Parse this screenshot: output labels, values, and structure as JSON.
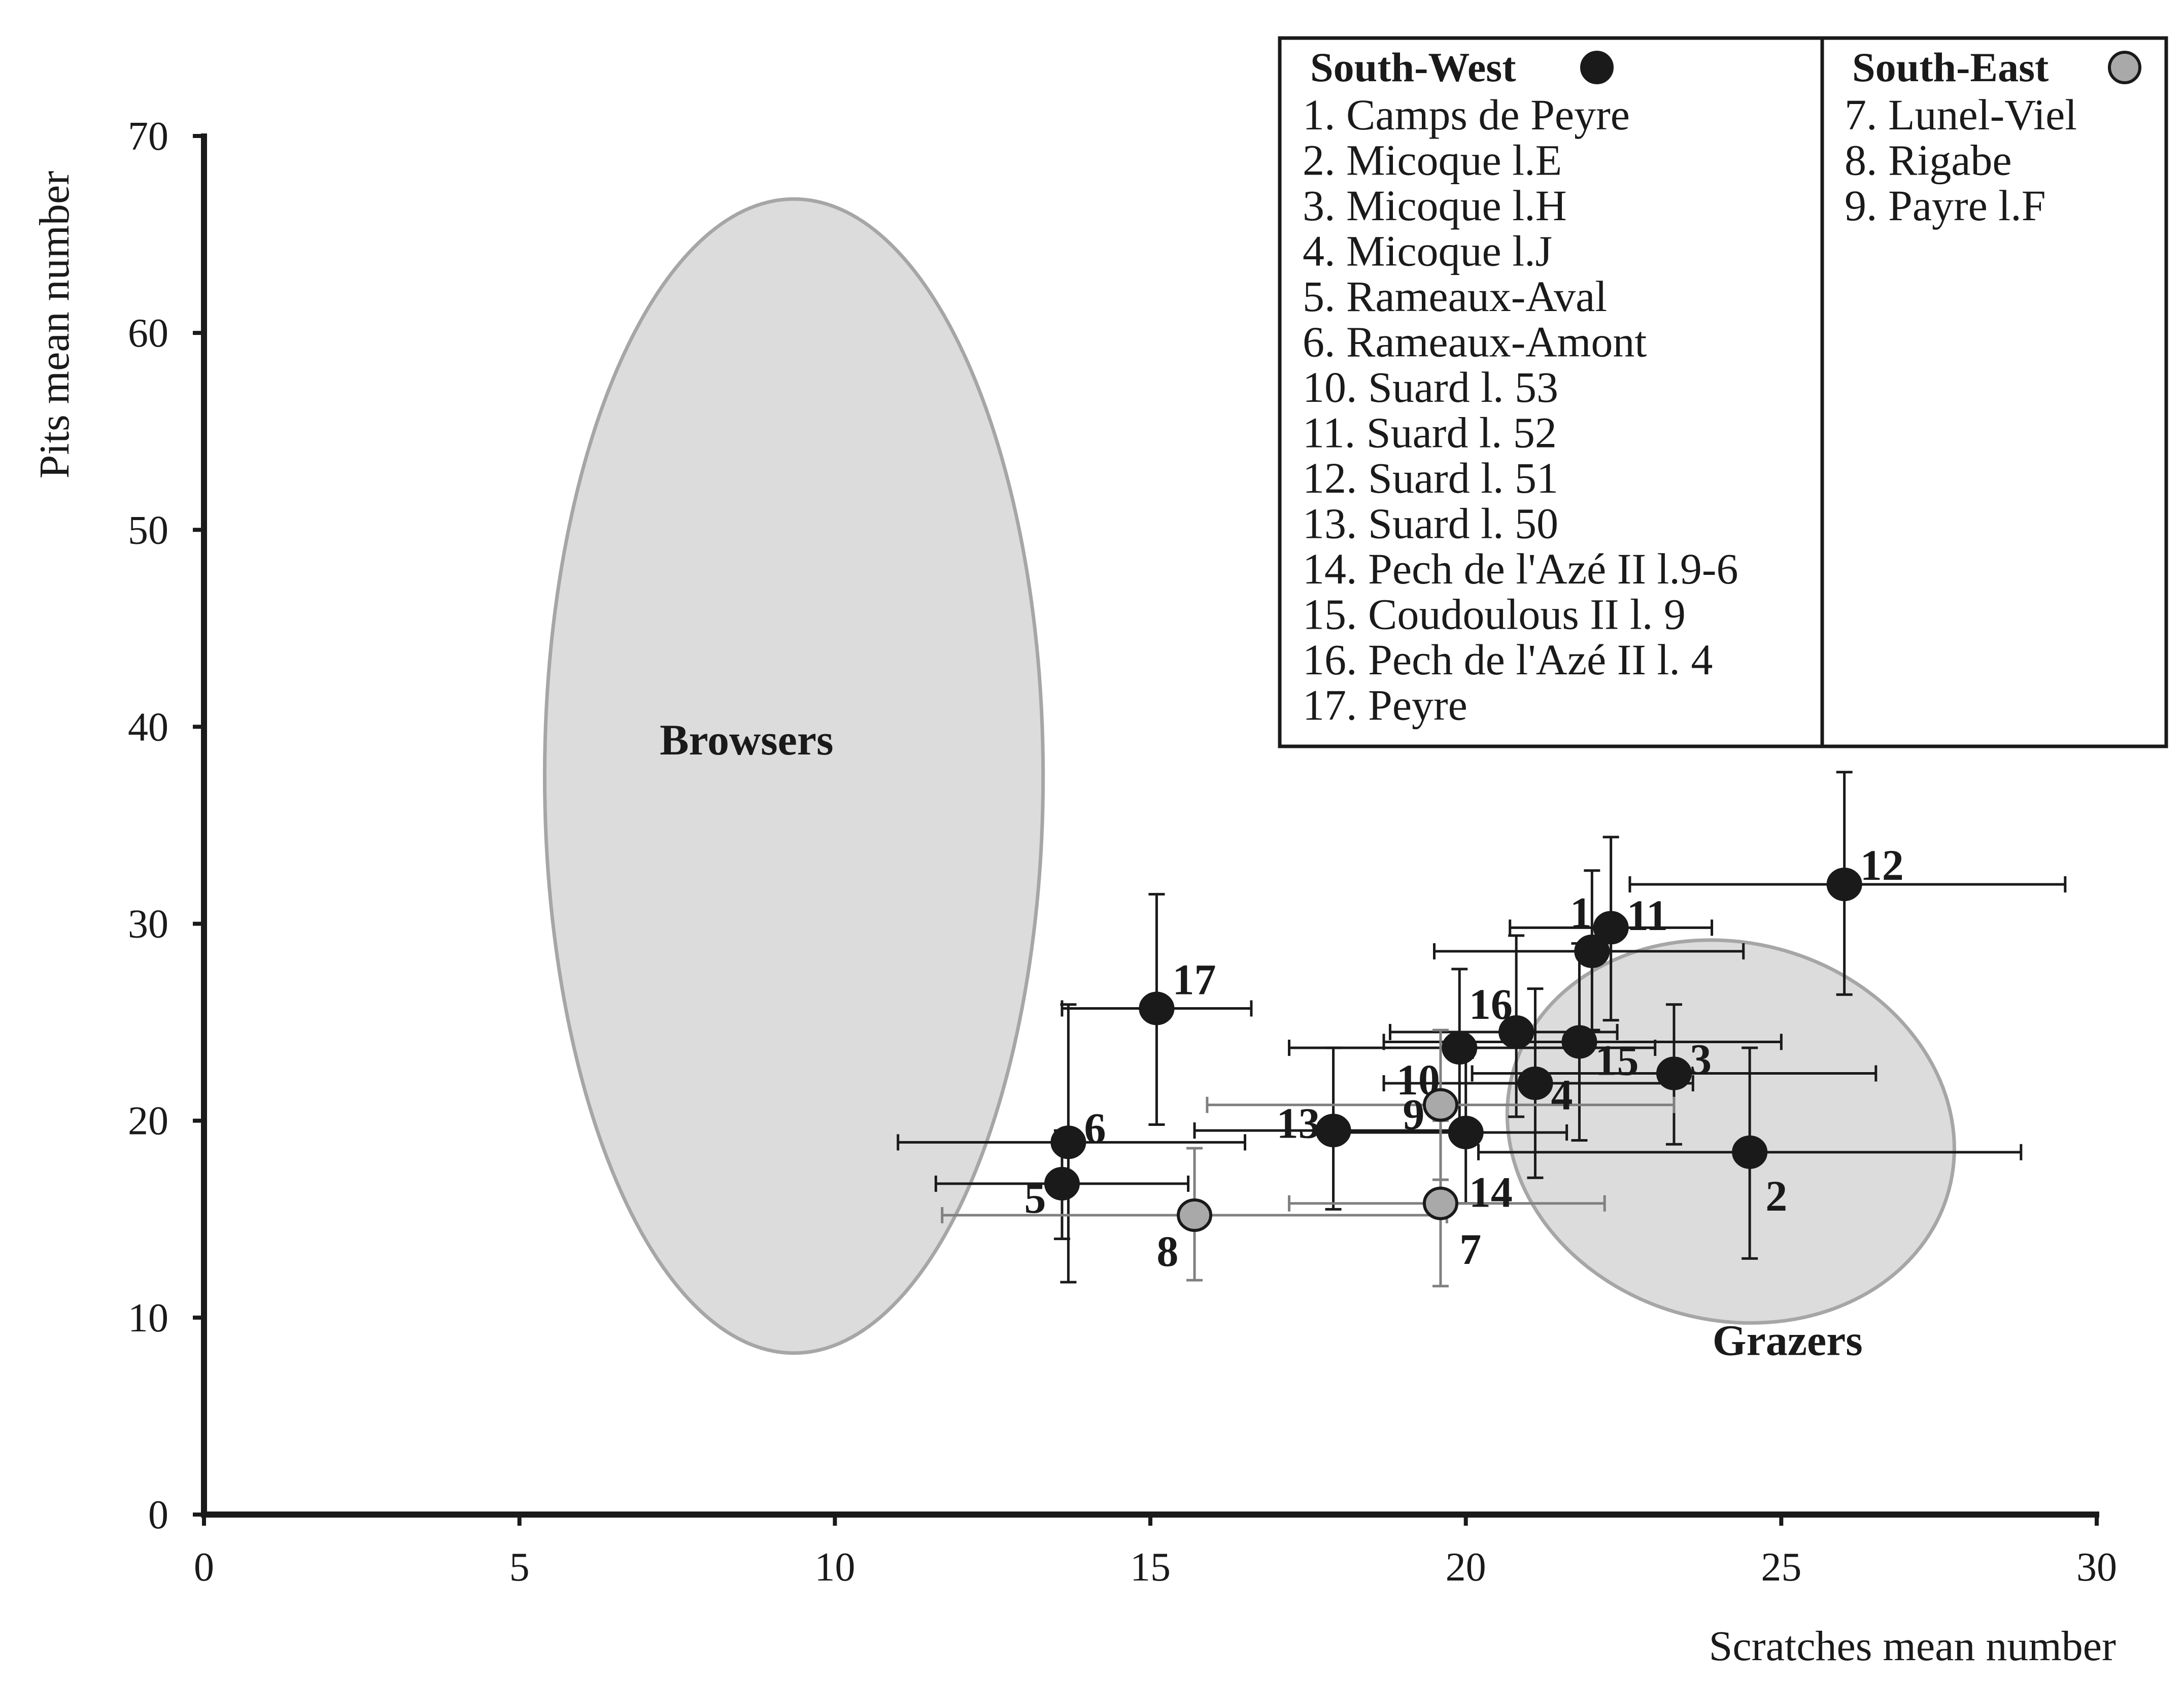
{
  "chart_data": {
    "type": "scatter",
    "xlabel": "Scratches mean number",
    "ylabel": "Pits mean number",
    "xlim": [
      0,
      30
    ],
    "ylim": [
      0,
      70
    ],
    "x_ticks": [
      "0",
      "5",
      "10",
      "15",
      "20",
      "25",
      "30"
    ],
    "y_ticks": [
      "0",
      "10",
      "20",
      "30",
      "40",
      "50",
      "60",
      "70"
    ],
    "x_tick_values": [
      0,
      5,
      10,
      15,
      20,
      25,
      30
    ],
    "y_tick_values": [
      0,
      10,
      20,
      30,
      40,
      50,
      60,
      70
    ],
    "grid": false,
    "legend_position": "top-right",
    "colors": {
      "south_west": "#1a1a1a",
      "south_east": "#a9a9a9",
      "zone_fill": "#dcdcdc",
      "zone_stroke": "#a6a6a6",
      "error_bar_sw": "#1a1a1a",
      "error_bar_se": "#808080"
    },
    "zones": [
      {
        "label": "Browsers",
        "center": [
          9.35,
          37.5
        ],
        "semi_axes": [
          3.95,
          29.3
        ],
        "rotation_deg": 0,
        "label_at": [
          8.6,
          38.6
        ]
      },
      {
        "label": "Grazers",
        "center": [
          24.2,
          19.45
        ],
        "semi_axes": [
          5.25,
          10.8
        ],
        "rotation_deg": -75,
        "label_at": [
          25.1,
          8.1
        ]
      }
    ],
    "legend": {
      "groups": [
        {
          "title": "South-West",
          "marker": "south_west",
          "entries": [
            "1. Camps de Peyre",
            "2. Micoque l.E",
            "3. Micoque l.H",
            "4. Micoque l.J",
            "5. Rameaux-Aval",
            "6. Rameaux-Amont",
            "10. Suard l. 53",
            "11. Suard l. 52",
            "12. Suard l. 51",
            "13. Suard l. 50",
            "14. Pech de l'Azé II l.9-6",
            "15. Coudoulous II l. 9",
            "16. Pech de l'Azé II l. 4",
            "17. Peyre"
          ]
        },
        {
          "title": "South-East",
          "marker": "south_east",
          "entries": [
            "7. Lunel-Viel",
            "8. Rigabe",
            "9. Payre l.F"
          ]
        }
      ]
    },
    "series": [
      {
        "name": "South-West",
        "group": "south_west",
        "points": [
          {
            "label": "1",
            "x": 22.0,
            "y": 28.6,
            "x_err": [
              19.5,
              24.4
            ],
            "y_err": [
              24.6,
              32.7
            ],
            "label_offset": [
              -0.35,
              2.0
            ]
          },
          {
            "label": "2",
            "x": 24.5,
            "y": 18.4,
            "x_err": [
              20.2,
              28.8
            ],
            "y_err": [
              13.0,
              23.7
            ],
            "label_offset": [
              0.25,
              -2.2
            ]
          },
          {
            "label": "3",
            "x": 23.3,
            "y": 22.4,
            "x_err": [
              20.1,
              26.5
            ],
            "y_err": [
              18.8,
              25.9
            ],
            "label_offset": [
              0.25,
              0.75
            ]
          },
          {
            "label": "4",
            "x": 21.1,
            "y": 21.9,
            "x_err": [
              18.7,
              23.6
            ],
            "y_err": [
              17.1,
              26.7
            ],
            "label_offset": [
              0.25,
              -0.55
            ]
          },
          {
            "label": "5",
            "x": 13.6,
            "y": 16.8,
            "x_err": [
              11.6,
              15.6
            ],
            "y_err": [
              14.0,
              19.5
            ],
            "label_offset": [
              -0.6,
              -0.7
            ]
          },
          {
            "label": "6",
            "x": 13.7,
            "y": 18.9,
            "x_err": [
              11.0,
              16.5
            ],
            "y_err": [
              11.8,
              25.9
            ],
            "label_offset": [
              0.25,
              0.75
            ]
          },
          {
            "label": "10",
            "x": 19.9,
            "y": 23.7,
            "x_err": [
              17.2,
              23.0
            ],
            "y_err": [
              19.6,
              27.7
            ],
            "label_offset": [
              -1.0,
              -1.6
            ]
          },
          {
            "label": "11",
            "x": 22.3,
            "y": 29.8,
            "x_err": [
              20.7,
              23.9
            ],
            "y_err": [
              25.1,
              34.4
            ],
            "label_offset": [
              0.25,
              0.65
            ]
          },
          {
            "label": "12",
            "x": 26.0,
            "y": 32.0,
            "x_err": [
              22.6,
              29.5
            ],
            "y_err": [
              26.4,
              37.7
            ],
            "label_offset": [
              0.25,
              1.0
            ]
          },
          {
            "label": "13",
            "x": 17.9,
            "y": 19.5,
            "x_err": [
              15.7,
              20.0
            ],
            "y_err": [
              15.5,
              23.7
            ],
            "label_offset": [
              -0.9,
              0.4
            ]
          },
          {
            "label": "14",
            "x": 20.0,
            "y": 19.4,
            "x_err": [
              18.0,
              21.6
            ],
            "y_err": [
              15.8,
              23.2
            ],
            "label_offset": [
              0.05,
              -3.0
            ]
          },
          {
            "label": "15",
            "x": 21.8,
            "y": 24.0,
            "x_err": [
              18.7,
              25.0
            ],
            "y_err": [
              19.0,
              29.0
            ],
            "label_offset": [
              0.25,
              -0.9
            ]
          },
          {
            "label": "16",
            "x": 20.8,
            "y": 24.5,
            "x_err": [
              18.8,
              22.4
            ],
            "y_err": [
              20.2,
              29.4
            ],
            "label_offset": [
              -0.75,
              1.45
            ]
          },
          {
            "label": "17",
            "x": 15.1,
            "y": 25.7,
            "x_err": [
              13.6,
              16.6
            ],
            "y_err": [
              19.8,
              31.5
            ],
            "label_offset": [
              0.25,
              1.5
            ]
          }
        ]
      },
      {
        "name": "South-East",
        "group": "south_east",
        "points": [
          {
            "label": "7",
            "x": 19.6,
            "y": 15.8,
            "x_err": [
              17.2,
              22.2
            ],
            "y_err": [
              11.6,
              20.0
            ],
            "label_offset": [
              0.3,
              -2.3
            ]
          },
          {
            "label": "8",
            "x": 15.7,
            "y": 15.2,
            "x_err": [
              11.7,
              19.7
            ],
            "y_err": [
              11.9,
              18.6
            ],
            "label_offset": [
              -0.6,
              -1.8
            ]
          },
          {
            "label": "9",
            "x": 19.6,
            "y": 20.8,
            "x_err": [
              15.9,
              23.3
            ],
            "y_err": [
              17.0,
              24.6
            ],
            "label_offset": [
              -0.6,
              -0.45
            ]
          }
        ]
      }
    ]
  }
}
